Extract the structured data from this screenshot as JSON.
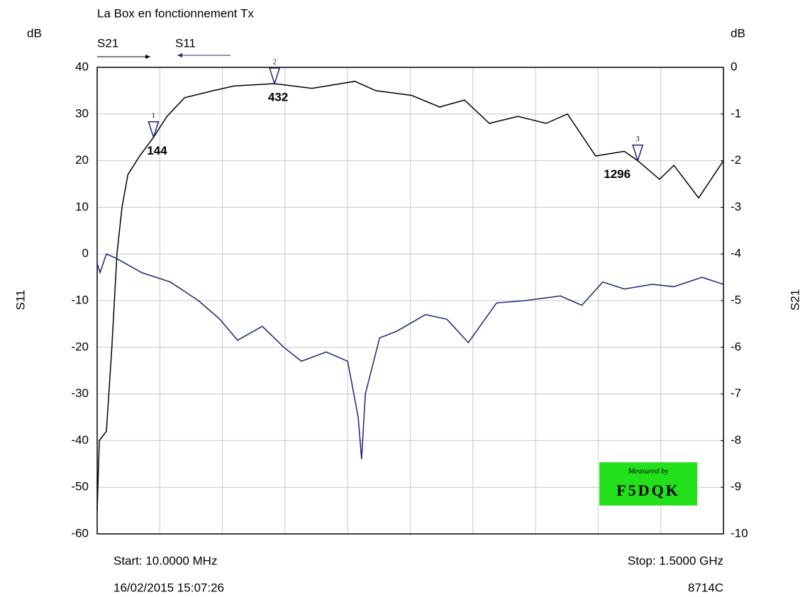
{
  "chart_data": {
    "type": "line",
    "title": "La Box en fonctionnement Tx",
    "y_unit": "dB",
    "y2_unit": "dB",
    "ylabel": "S11",
    "y2label": "S21",
    "start_label": "Start: 10.0000 MHz",
    "stop_label": "Stop: 1.5000 GHz",
    "timestamp": "16/02/2015 15:07:26",
    "instrument": "8714C",
    "badge": {
      "line1": "Measured by",
      "line2": "F5DQK",
      "color": "#22e01c"
    },
    "xlim": [
      10,
      1500
    ],
    "ylim": [
      -60,
      40
    ],
    "yticks": [
      40,
      30,
      20,
      10,
      0,
      -10,
      -20,
      -30,
      -40,
      -50,
      -60
    ],
    "y2lim": [
      -10,
      0
    ],
    "y2ticks": [
      0,
      -1,
      -2,
      -3,
      -4,
      -5,
      -6,
      -7,
      -8,
      -9,
      -10
    ],
    "grid": true,
    "grid_divisions": 10,
    "series": [
      {
        "name": "S21",
        "color": "#000000",
        "axis": "y2",
        "x": [
          10,
          15,
          32,
          45,
          57,
          69,
          83,
          111,
          144,
          176,
          218,
          286,
          336,
          432,
          521,
          623,
          673,
          758,
          825,
          884,
          943,
          1011,
          1078,
          1129,
          1196,
          1264,
          1296,
          1348,
          1382,
          1441,
          1500
        ],
        "values": [
          -9.5,
          -8.0,
          -7.8,
          -6.0,
          -4.0,
          -3.0,
          -2.3,
          -1.9,
          -1.5,
          -1.05,
          -0.65,
          -0.5,
          -0.4,
          -0.35,
          -0.45,
          -0.3,
          -0.5,
          -0.6,
          -0.85,
          -0.7,
          -1.2,
          -1.05,
          -1.2,
          -1.0,
          -1.9,
          -1.8,
          -2.0,
          -2.4,
          -2.1,
          -2.8,
          -2.0
        ]
      },
      {
        "name": "S11",
        "color": "#1c2378",
        "x": [
          10,
          17,
          32,
          57,
          116,
          184,
          251,
          302,
          344,
          403,
          454,
          496,
          555,
          606,
          631,
          639,
          648,
          682,
          724,
          791,
          842,
          893,
          960,
          1028,
          1112,
          1163,
          1213,
          1264,
          1331,
          1382,
          1449,
          1500
        ],
        "values": [
          -2,
          -4,
          0,
          -1,
          -4,
          -6,
          -10,
          -14,
          -18.5,
          -15.5,
          -20,
          -23,
          -21,
          -23,
          -35,
          -44,
          -30,
          -18,
          -16.5,
          -13,
          -14,
          -19,
          -10.5,
          -10,
          -9,
          -11,
          -6,
          -7.5,
          -6.5,
          -7,
          -5,
          -6.5
        ]
      }
    ],
    "markers": [
      {
        "number": "1",
        "label": "144",
        "x": 144
      },
      {
        "number": "2",
        "label": "432",
        "x": 432
      },
      {
        "number": "3",
        "label": "1296",
        "x": 1296
      }
    ]
  }
}
